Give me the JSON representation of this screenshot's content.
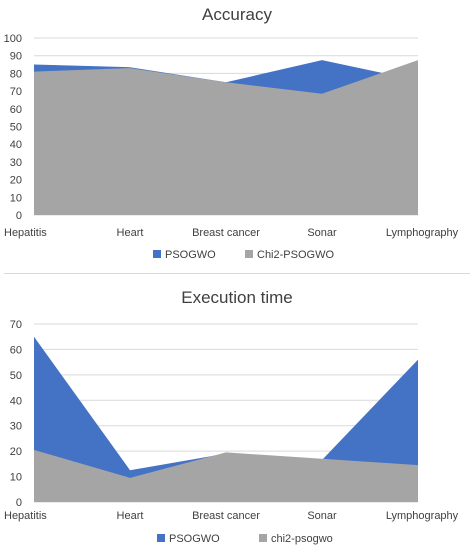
{
  "chart_data": [
    {
      "type": "area",
      "title": "Accuracy",
      "categories": [
        "Hepatitis",
        "Heart",
        "Breast cancer",
        "Sonar",
        "Lymphography"
      ],
      "ylim": [
        0,
        100
      ],
      "yticks": [
        0,
        10,
        20,
        30,
        40,
        50,
        60,
        70,
        80,
        90,
        100
      ],
      "grid": true,
      "legend_position": "bottom",
      "series": [
        {
          "name": "PSOGWO",
          "color": "#4472C4",
          "values": [
            85,
            83.5,
            75,
            87.5,
            76
          ]
        },
        {
          "name": "Chi2-PSOGWO",
          "color": "#A5A5A5",
          "values": [
            81,
            83,
            75,
            68.5,
            87.5
          ]
        }
      ]
    },
    {
      "type": "area",
      "title": "Execution time",
      "categories": [
        "Hepatitis",
        "Heart",
        "Breast cancer",
        "Sonar",
        "Lymphography"
      ],
      "ylim": [
        0,
        70
      ],
      "yticks": [
        0,
        10,
        20,
        30,
        40,
        50,
        60,
        70
      ],
      "grid": true,
      "legend_position": "bottom",
      "series": [
        {
          "name": "PSOGWO",
          "color": "#4472C4",
          "values": [
            65,
            12.5,
            19,
            16.5,
            56
          ]
        },
        {
          "name": "chi2-psogwo",
          "color": "#A5A5A5",
          "values": [
            20.5,
            9.5,
            19.5,
            17,
            14.5
          ]
        }
      ]
    }
  ]
}
